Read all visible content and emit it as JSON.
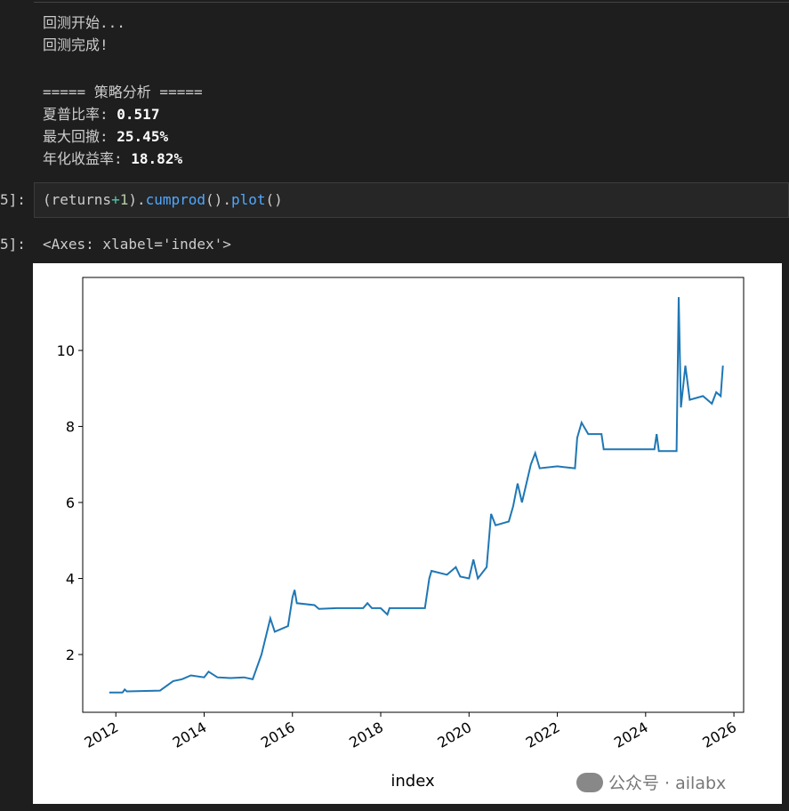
{
  "output_lines": [
    "回测开始...",
    "回测完成!",
    "===== 策略分析 ====="
  ],
  "metrics": [
    {
      "label": "夏普比率:",
      "value": "0.517"
    },
    {
      "label": "最大回撤:",
      "value": "25.45%"
    },
    {
      "label": "年化收益率:",
      "value": "18.82%"
    }
  ],
  "input_prompt": "5]:",
  "code_tokens": [
    "(returns",
    "+",
    "1",
    ").",
    "cumprod",
    "().",
    "plot",
    "()"
  ],
  "output_prompt": "5]:",
  "output_repr": "<Axes: xlabel='index'>",
  "watermark": "公众号 · ailabx",
  "chart_data": {
    "type": "line",
    "xlabel": "index",
    "x": [
      2011.85,
      2012.15,
      2012.2,
      2012.25,
      2013.0,
      2013.3,
      2013.5,
      2013.7,
      2014.0,
      2014.1,
      2014.3,
      2014.6,
      2014.9,
      2015.1,
      2015.3,
      2015.5,
      2015.6,
      2015.9,
      2016.0,
      2016.05,
      2016.1,
      2016.5,
      2016.6,
      2017.0,
      2017.6,
      2017.7,
      2017.8,
      2018.0,
      2018.15,
      2018.2,
      2019.0,
      2019.1,
      2019.15,
      2019.5,
      2019.7,
      2019.8,
      2020.0,
      2020.1,
      2020.2,
      2020.4,
      2020.5,
      2020.6,
      2020.9,
      2021.0,
      2021.1,
      2021.2,
      2021.4,
      2021.5,
      2021.6,
      2022.0,
      2022.4,
      2022.45,
      2022.55,
      2022.7,
      2023.0,
      2023.05,
      2024.0,
      2024.2,
      2024.25,
      2024.3,
      2024.7,
      2024.75,
      2024.8,
      2024.9,
      2025.0,
      2025.3,
      2025.5,
      2025.6,
      2025.7,
      2025.75
    ],
    "series": [
      {
        "color": "#1f77b4",
        "values": [
          1.0,
          1.0,
          1.08,
          1.03,
          1.05,
          1.3,
          1.35,
          1.45,
          1.4,
          1.55,
          1.4,
          1.38,
          1.4,
          1.35,
          2.0,
          2.95,
          2.6,
          2.75,
          3.5,
          3.7,
          3.35,
          3.3,
          3.2,
          3.22,
          3.22,
          3.35,
          3.22,
          3.22,
          3.05,
          3.22,
          3.22,
          4.0,
          4.2,
          4.1,
          4.3,
          4.05,
          4.0,
          4.5,
          4.0,
          4.3,
          5.7,
          5.4,
          5.5,
          5.9,
          6.5,
          6.0,
          7.0,
          7.3,
          6.9,
          6.95,
          6.9,
          7.7,
          8.1,
          7.8,
          7.8,
          7.4,
          7.4,
          7.4,
          7.8,
          7.35,
          7.35,
          11.4,
          8.5,
          9.6,
          8.7,
          8.8,
          8.6,
          8.9,
          8.8,
          9.6
        ]
      }
    ],
    "xlim": [
      2011.25,
      2026.22
    ],
    "xticks": [
      2012,
      2014,
      2016,
      2018,
      2020,
      2022,
      2024,
      2026
    ],
    "ylim": [
      0.48,
      11.92
    ],
    "yticks": [
      2,
      4,
      6,
      8,
      10
    ]
  }
}
